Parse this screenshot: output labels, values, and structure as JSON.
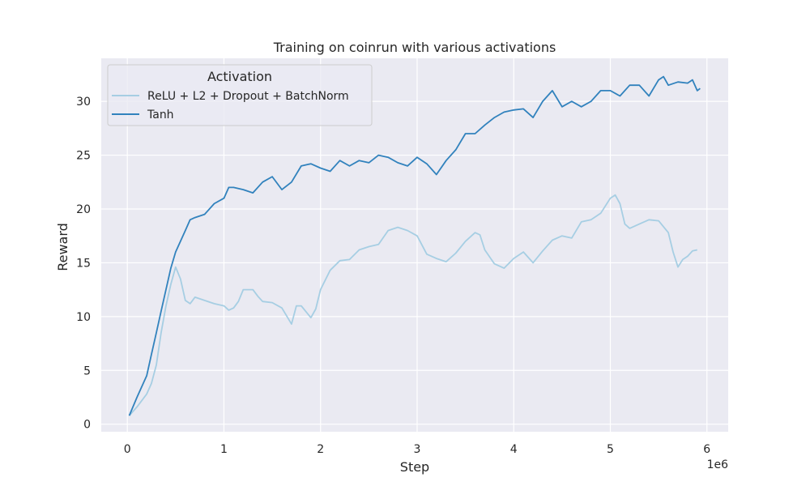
{
  "chart_data": {
    "type": "line",
    "title": "Training on coinrun with various activations",
    "xlabel": "Step",
    "ylabel": "Reward",
    "x_offset_label": "1e6",
    "xlim": [
      -0.27,
      6.22
    ],
    "ylim": [
      -0.7,
      34.0
    ],
    "x_ticks": [
      0,
      1,
      2,
      3,
      4,
      5,
      6
    ],
    "x_tick_labels": [
      "0",
      "1",
      "2",
      "3",
      "4",
      "5",
      "6"
    ],
    "y_ticks": [
      0,
      5,
      10,
      15,
      20,
      25,
      30
    ],
    "y_tick_labels": [
      "0",
      "5",
      "10",
      "15",
      "20",
      "25",
      "30"
    ],
    "grid": true,
    "legend": {
      "title": "Activation",
      "placement": "top-left"
    },
    "colors": {
      "background": "#eaeaf2",
      "grid": "#ffffff",
      "relu": "#a6cee3",
      "tanh": "#3182bd"
    },
    "series": [
      {
        "name": "ReLU + L2 + Dropout + BatchNorm",
        "color": "#a6cee3",
        "x": [
          0.02,
          0.1,
          0.2,
          0.25,
          0.3,
          0.35,
          0.4,
          0.45,
          0.5,
          0.55,
          0.6,
          0.65,
          0.7,
          0.8,
          0.9,
          1.0,
          1.05,
          1.1,
          1.15,
          1.2,
          1.3,
          1.35,
          1.4,
          1.5,
          1.6,
          1.7,
          1.75,
          1.8,
          1.9,
          1.95,
          2.0,
          2.1,
          2.2,
          2.3,
          2.4,
          2.5,
          2.6,
          2.7,
          2.8,
          2.9,
          3.0,
          3.1,
          3.2,
          3.3,
          3.4,
          3.5,
          3.6,
          3.65,
          3.7,
          3.8,
          3.9,
          4.0,
          4.1,
          4.2,
          4.3,
          4.4,
          4.5,
          4.6,
          4.7,
          4.8,
          4.9,
          5.0,
          5.05,
          5.1,
          5.15,
          5.2,
          5.3,
          5.4,
          5.5,
          5.6,
          5.65,
          5.7,
          5.75,
          5.8,
          5.85,
          5.9
        ],
        "y": [
          0.8,
          1.6,
          2.8,
          3.8,
          5.5,
          8.5,
          11.0,
          13.0,
          14.6,
          13.5,
          11.5,
          11.2,
          11.8,
          11.5,
          11.2,
          11.0,
          10.6,
          10.8,
          11.4,
          12.5,
          12.5,
          11.9,
          11.4,
          11.3,
          10.8,
          9.3,
          11.0,
          11.0,
          9.9,
          10.7,
          12.5,
          14.3,
          15.2,
          15.3,
          16.2,
          16.5,
          16.7,
          18.0,
          18.3,
          18.0,
          17.5,
          15.8,
          15.4,
          15.1,
          15.9,
          17.0,
          17.8,
          17.6,
          16.2,
          14.9,
          14.5,
          15.4,
          16.0,
          15.0,
          16.1,
          17.1,
          17.5,
          17.3,
          18.8,
          19.0,
          19.6,
          21.0,
          21.3,
          20.5,
          18.6,
          18.2,
          18.6,
          19.0,
          18.9,
          17.8,
          16.0,
          14.6,
          15.3,
          15.6,
          16.1,
          16.2
        ]
      },
      {
        "name": "Tanh",
        "color": "#3182bd",
        "x": [
          0.02,
          0.1,
          0.2,
          0.25,
          0.3,
          0.35,
          0.4,
          0.45,
          0.5,
          0.55,
          0.6,
          0.65,
          0.7,
          0.8,
          0.9,
          1.0,
          1.05,
          1.1,
          1.2,
          1.3,
          1.4,
          1.5,
          1.6,
          1.7,
          1.8,
          1.9,
          2.0,
          2.1,
          2.2,
          2.3,
          2.4,
          2.5,
          2.6,
          2.7,
          2.8,
          2.9,
          3.0,
          3.1,
          3.2,
          3.3,
          3.4,
          3.5,
          3.6,
          3.7,
          3.8,
          3.9,
          4.0,
          4.1,
          4.2,
          4.3,
          4.4,
          4.5,
          4.6,
          4.7,
          4.8,
          4.9,
          5.0,
          5.1,
          5.2,
          5.3,
          5.4,
          5.5,
          5.55,
          5.6,
          5.7,
          5.8,
          5.85,
          5.9,
          5.93
        ],
        "y": [
          0.8,
          2.5,
          4.5,
          6.5,
          8.5,
          10.5,
          12.5,
          14.5,
          16.0,
          17.0,
          18.0,
          19.0,
          19.2,
          19.5,
          20.5,
          21.0,
          22.0,
          22.0,
          21.8,
          21.5,
          22.5,
          23.0,
          21.8,
          22.5,
          24.0,
          24.2,
          23.8,
          23.5,
          24.5,
          24.0,
          24.5,
          24.3,
          25.0,
          24.8,
          24.3,
          24.0,
          24.8,
          24.2,
          23.2,
          24.5,
          25.5,
          27.0,
          27.0,
          27.8,
          28.5,
          29.0,
          29.2,
          29.3,
          28.5,
          30.0,
          31.0,
          29.5,
          30.0,
          29.5,
          30.0,
          31.0,
          31.0,
          30.5,
          31.5,
          31.5,
          30.5,
          32.0,
          32.3,
          31.5,
          31.8,
          31.7,
          32.0,
          31.0,
          31.2
        ]
      }
    ]
  }
}
